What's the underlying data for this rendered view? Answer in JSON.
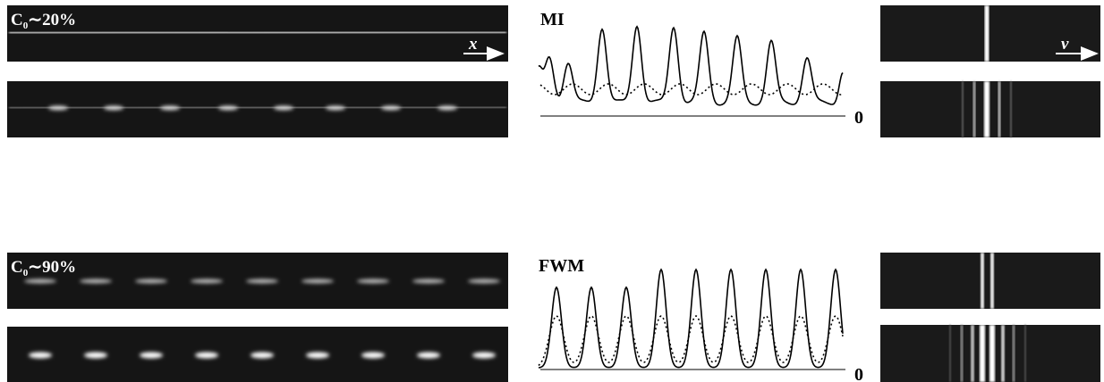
{
  "rows": [
    {
      "label": {
        "base": "C",
        "subscript": "0",
        "rest": "∼20%"
      },
      "space_axis": "x",
      "profile_label": "MI",
      "profile_zero": "0",
      "spectrum_axis": "ν"
    },
    {
      "label": {
        "base": "C",
        "subscript": "0",
        "rest": "∼90%"
      },
      "profile_label": "FWM",
      "profile_zero": "0"
    }
  ]
}
